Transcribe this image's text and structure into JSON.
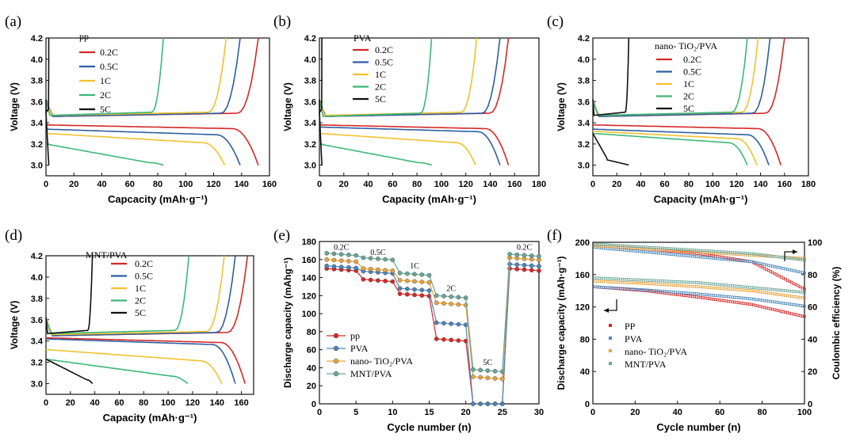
{
  "colors": {
    "red": "#d62728",
    "blue": "#2c5fa0",
    "yellow": "#f2c12e",
    "green": "#3cb878",
    "black": "#111111",
    "teal": "#5aa0a0",
    "mutedblue": "#4b86b8",
    "orange": "#e8a33c",
    "gray": "#6aa69a"
  },
  "chart_data": [
    {
      "id": "a",
      "panel_label": "(a)",
      "type": "line",
      "title": "pp",
      "xlabel": "Capcacity (mAh·g⁻¹)",
      "ylabel": "Voltage (V)",
      "xlim": [
        0,
        160
      ],
      "ylim": [
        2.9,
        4.2
      ],
      "xticks": [
        0,
        20,
        40,
        60,
        80,
        100,
        120,
        140,
        160
      ],
      "xtick_labels": [
        "0",
        "20",
        "40",
        "60",
        "80",
        "100",
        "120",
        "140",
        "160"
      ],
      "yticks": [
        3.0,
        3.2,
        3.4,
        3.6,
        3.8,
        4.0,
        4.2
      ],
      "ytick_labels": [
        "3.0",
        "3.2",
        "3.4",
        "3.6",
        "3.8",
        "4.0",
        "4.2"
      ],
      "legend": [
        "0.2C",
        "0.5C",
        "1C",
        "2C",
        "5C"
      ],
      "series": [
        {
          "name": "0.2C",
          "color": "red",
          "charge": {
            "cap": 152,
            "plateau": 3.46
          },
          "discharge": {
            "cap": 152,
            "v0": 3.38,
            "slope": 0.04
          }
        },
        {
          "name": "0.5C",
          "color": "blue",
          "charge": {
            "cap": 139,
            "plateau": 3.46
          },
          "discharge": {
            "cap": 139,
            "v0": 3.34,
            "slope": 0.06
          }
        },
        {
          "name": "1C",
          "color": "yellow",
          "charge": {
            "cap": 129,
            "plateau": 3.47
          },
          "discharge": {
            "cap": 128,
            "v0": 3.3,
            "slope": 0.1
          }
        },
        {
          "name": "2C",
          "color": "green",
          "charge": {
            "cap": 84,
            "plateau": 3.47
          },
          "discharge": {
            "cap": 84,
            "v0": 3.2,
            "slope": 0.2
          }
        },
        {
          "name": "5C",
          "color": "black",
          "charge": {
            "cap": 2,
            "plateau": 3.5
          },
          "discharge": {
            "cap": 2,
            "v0": 3.5,
            "slope": 0.5
          }
        }
      ]
    },
    {
      "id": "b",
      "panel_label": "(b)",
      "type": "line",
      "title": "PVA",
      "xlabel": "Capacity (mAh·g⁻¹)",
      "ylabel": "Voltage (V)",
      "xlim": [
        0,
        180
      ],
      "ylim": [
        2.9,
        4.2
      ],
      "xticks": [
        0,
        20,
        40,
        60,
        80,
        100,
        120,
        140,
        160,
        180
      ],
      "xtick_labels": [
        "0",
        "20",
        "40",
        "60",
        "80",
        "100",
        "120",
        "140",
        "160",
        "180"
      ],
      "yticks": [
        3.0,
        3.2,
        3.4,
        3.6,
        3.8,
        4.0,
        4.2
      ],
      "ytick_labels": [
        "3.0",
        "3.2",
        "3.4",
        "3.6",
        "3.8",
        "4.0",
        "4.2"
      ],
      "legend": [
        "0.2C",
        "0.5C",
        "1C",
        "2C",
        "5C"
      ],
      "series": [
        {
          "name": "0.2C",
          "color": "red",
          "charge": {
            "cap": 155,
            "plateau": 3.46
          },
          "discharge": {
            "cap": 155,
            "v0": 3.38,
            "slope": 0.04
          }
        },
        {
          "name": "0.5C",
          "color": "blue",
          "charge": {
            "cap": 148,
            "plateau": 3.46
          },
          "discharge": {
            "cap": 148,
            "v0": 3.36,
            "slope": 0.05
          }
        },
        {
          "name": "1C",
          "color": "yellow",
          "charge": {
            "cap": 129,
            "plateau": 3.47
          },
          "discharge": {
            "cap": 128,
            "v0": 3.3,
            "slope": 0.1
          }
        },
        {
          "name": "2C",
          "color": "green",
          "charge": {
            "cap": 92,
            "plateau": 3.46
          },
          "discharge": {
            "cap": 92,
            "v0": 3.2,
            "slope": 0.2
          }
        },
        {
          "name": "5C",
          "color": "black",
          "charge": {
            "cap": 2,
            "plateau": 3.5
          },
          "discharge": {
            "cap": 2,
            "v0": 3.5,
            "slope": 0.5
          }
        }
      ]
    },
    {
      "id": "c",
      "panel_label": "(c)",
      "type": "line",
      "title": "nano- TiO₂/PVA",
      "xlabel": "Capacity (mAh·g⁻¹)",
      "ylabel": "Voltage (V)",
      "xlim": [
        0,
        180
      ],
      "ylim": [
        2.9,
        4.2
      ],
      "xticks": [
        0,
        20,
        40,
        60,
        80,
        100,
        120,
        140,
        160,
        180
      ],
      "xtick_labels": [
        "0",
        "20",
        "40",
        "60",
        "80",
        "100",
        "120",
        "140",
        "160",
        "180"
      ],
      "yticks": [
        3.0,
        3.2,
        3.4,
        3.6,
        3.8,
        4.0,
        4.2
      ],
      "ytick_labels": [
        "3.0",
        "3.2",
        "3.4",
        "3.6",
        "3.8",
        "4.0",
        "4.2"
      ],
      "legend": [
        "0.2C",
        "0.5C",
        "1C",
        "2C",
        "5C"
      ],
      "series": [
        {
          "name": "0.2C",
          "color": "red",
          "charge": {
            "cap": 160,
            "plateau": 3.46
          },
          "discharge": {
            "cap": 157,
            "v0": 3.38,
            "slope": 0.04
          }
        },
        {
          "name": "0.5C",
          "color": "blue",
          "charge": {
            "cap": 148,
            "plateau": 3.46
          },
          "discharge": {
            "cap": 147,
            "v0": 3.34,
            "slope": 0.06
          }
        },
        {
          "name": "1C",
          "color": "yellow",
          "charge": {
            "cap": 138,
            "plateau": 3.47
          },
          "discharge": {
            "cap": 137,
            "v0": 3.32,
            "slope": 0.08
          }
        },
        {
          "name": "2C",
          "color": "green",
          "charge": {
            "cap": 129,
            "plateau": 3.47
          },
          "discharge": {
            "cap": 129,
            "v0": 3.3,
            "slope": 0.1
          }
        },
        {
          "name": "5C",
          "color": "black",
          "charge": {
            "cap": 30,
            "plateau": 3.47
          },
          "discharge": {
            "cap": 30,
            "v0": 3.3,
            "slope": 0.3
          }
        }
      ]
    },
    {
      "id": "d",
      "panel_label": "(d)",
      "type": "line",
      "title": "MNT/PVA",
      "xlabel": "Capacity (mAh·g⁻¹)",
      "ylabel": "Voltage (V)",
      "xlim": [
        0,
        170
      ],
      "ylim": [
        2.9,
        4.2
      ],
      "xticks": [
        0,
        20,
        40,
        60,
        80,
        100,
        120,
        140,
        160
      ],
      "xtick_labels": [
        "0",
        "20",
        "40",
        "60",
        "80",
        "100",
        "120",
        "140",
        "160"
      ],
      "yticks": [
        3.0,
        3.2,
        3.4,
        3.6,
        3.8,
        4.0,
        4.2
      ],
      "ytick_labels": [
        "3.0",
        "3.2",
        "3.4",
        "3.6",
        "3.8",
        "4.0",
        "4.2"
      ],
      "legend": [
        "0.2C",
        "0.5C",
        "1C",
        "2C",
        "5C"
      ],
      "series": [
        {
          "name": "0.2C",
          "color": "red",
          "charge": {
            "cap": 165,
            "plateau": 3.45
          },
          "discharge": {
            "cap": 163,
            "v0": 3.43,
            "slope": 0.05
          }
        },
        {
          "name": "0.5C",
          "color": "blue",
          "charge": {
            "cap": 155,
            "plateau": 3.45
          },
          "discharge": {
            "cap": 155,
            "v0": 3.42,
            "slope": 0.06
          }
        },
        {
          "name": "1C",
          "color": "yellow",
          "charge": {
            "cap": 146,
            "plateau": 3.46
          },
          "discharge": {
            "cap": 144,
            "v0": 3.32,
            "slope": 0.12
          }
        },
        {
          "name": "2C",
          "color": "green",
          "charge": {
            "cap": 117,
            "plateau": 3.47
          },
          "discharge": {
            "cap": 116,
            "v0": 3.23,
            "slope": 0.18
          }
        },
        {
          "name": "5C",
          "color": "black",
          "charge": {
            "cap": 38,
            "plateau": 3.47
          },
          "discharge": {
            "cap": 38,
            "v0": 3.23,
            "slope": 0.22
          }
        }
      ]
    },
    {
      "id": "e",
      "panel_label": "(e)",
      "type": "line",
      "xlabel": "Cycle number (n)",
      "ylabel": "Discharge capacity (mAhg⁻¹)",
      "xlim": [
        0,
        30
      ],
      "ylim": [
        0,
        180
      ],
      "xticks": [
        0,
        5,
        10,
        15,
        20,
        25,
        30
      ],
      "xtick_labels": [
        "0",
        "5",
        "10",
        "15",
        "20",
        "25",
        "30"
      ],
      "yticks": [
        0,
        20,
        40,
        60,
        80,
        100,
        120,
        140,
        160,
        180
      ],
      "ytick_labels": [
        "0",
        "20",
        "40",
        "60",
        "80",
        "100",
        "120",
        "140",
        "160",
        "180"
      ],
      "rate_labels": [
        {
          "text": "0.2C",
          "x": 3,
          "y": 171
        },
        {
          "text": "0.5C",
          "x": 8,
          "y": 165
        },
        {
          "text": "1C",
          "x": 13,
          "y": 150
        },
        {
          "text": "2C",
          "x": 18,
          "y": 125
        },
        {
          "text": "5C",
          "x": 23,
          "y": 43
        },
        {
          "text": "0.2C",
          "x": 28,
          "y": 171
        }
      ],
      "legend": [
        "pp",
        "PVA",
        "nano- TiO₂/PVA",
        "MNT/PVA"
      ],
      "series": [
        {
          "name": "pp",
          "color": "red",
          "levels": [
            150,
            138,
            122,
            72,
            0,
            150
          ]
        },
        {
          "name": "PVA",
          "color": "mutedblue",
          "levels": [
            153,
            147,
            128,
            90,
            0,
            155
          ]
        },
        {
          "name": "nano- TiO₂/PVA",
          "color": "orange",
          "levels": [
            160,
            150,
            137,
            112,
            30,
            162
          ]
        },
        {
          "name": "MNT/PVA",
          "color": "gray",
          "levels": [
            167,
            162,
            145,
            120,
            38,
            166
          ]
        }
      ]
    },
    {
      "id": "f",
      "panel_label": "(f)",
      "type": "scatter",
      "xlabel": "Cycle number (n)",
      "ylabel": "Discharge capacity (mAh·g⁻¹)",
      "y2label": "Coulombic efficiency (%)",
      "xlim": [
        0,
        100
      ],
      "ylim": [
        0,
        200
      ],
      "y2lim": [
        0,
        100
      ],
      "xticks": [
        0,
        20,
        40,
        60,
        80,
        100
      ],
      "xtick_labels": [
        "0",
        "20",
        "40",
        "60",
        "80",
        "100"
      ],
      "yticks": [
        0,
        40,
        80,
        120,
        160,
        200
      ],
      "ytick_labels": [
        "0",
        "40",
        "80",
        "120",
        "160",
        "200"
      ],
      "y2ticks": [
        0,
        20,
        40,
        60,
        80,
        100
      ],
      "y2tick_labels": [
        "0",
        "20",
        "40",
        "60",
        "80",
        "100"
      ],
      "legend": [
        "PP",
        "PVA",
        "nano- TiO₂/PVA",
        "MNT/PVA"
      ],
      "series": [
        {
          "name": "PP",
          "color": "red",
          "capacity": [
            145,
            140,
            132,
            123,
            108
          ],
          "efficiency": [
            98,
            96,
            93,
            88,
            71
          ]
        },
        {
          "name": "PVA",
          "color": "mutedblue",
          "capacity": [
            145,
            141,
            136,
            130,
            121
          ],
          "efficiency": [
            97,
            94,
            91,
            88,
            81
          ]
        },
        {
          "name": "nano- TiO₂/PVA",
          "color": "orange",
          "capacity": [
            152,
            149,
            145,
            140,
            131
          ],
          "efficiency": [
            98,
            96,
            94,
            92,
            90
          ]
        },
        {
          "name": "MNT/PVA",
          "color": "gray",
          "capacity": [
            156,
            153,
            150,
            144,
            138
          ],
          "efficiency": [
            99,
            97,
            95,
            93,
            89
          ]
        }
      ]
    }
  ]
}
